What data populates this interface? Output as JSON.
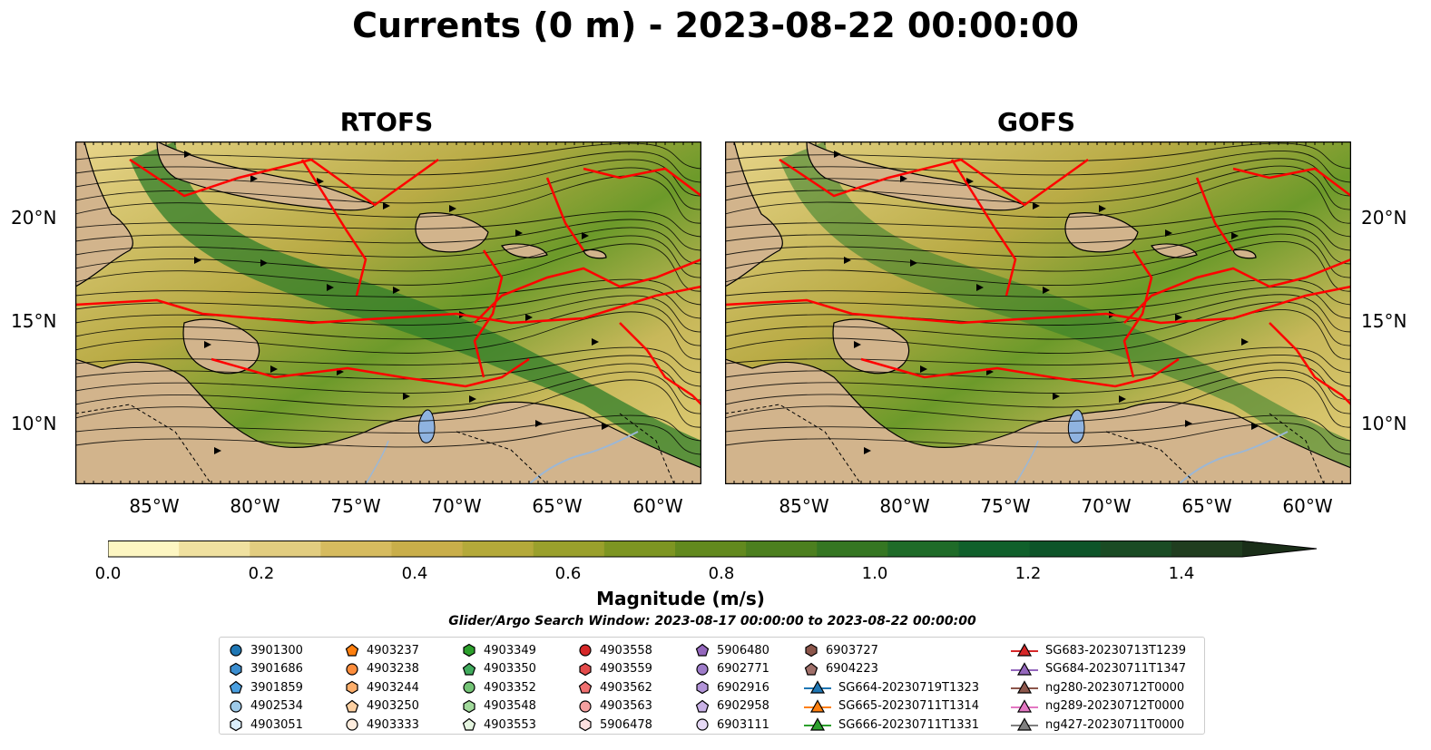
{
  "figure": {
    "title": "Currents (0 m) - 2023-08-22 00:00:00",
    "panels": [
      {
        "title": "RTOFS"
      },
      {
        "title": "GOFS"
      }
    ],
    "longitude_ticks": [
      "85°W",
      "80°W",
      "75°W",
      "70°W",
      "65°W",
      "60°W"
    ],
    "latitude_ticks": [
      "20°N",
      "15°N",
      "10°N"
    ],
    "colorbar": {
      "label": "Magnitude (m/s)",
      "ticks": [
        "0.0",
        "0.2",
        "0.4",
        "0.6",
        "0.8",
        "1.0",
        "1.2",
        "1.4"
      ],
      "colors": [
        "#fdf6c2",
        "#f0e1a0",
        "#e2cd80",
        "#d6bb5f",
        "#c9ae4a",
        "#b4a93a",
        "#9aa02c",
        "#7d9522",
        "#62891e",
        "#4c7f1f",
        "#357622",
        "#1f6b28",
        "#10602b",
        "#0d5429",
        "#1a4b24",
        "#203d1f"
      ]
    },
    "search_window": "Glider/Argo Search Window: 2023-08-17 00:00:00 to 2023-08-22 00:00:00",
    "legend": [
      [
        {
          "label": "3901300",
          "marker": "circle",
          "color": "#1f77b4"
        },
        {
          "label": "3901686",
          "marker": "hexagon",
          "color": "#3b8ed0"
        },
        {
          "label": "3901859",
          "marker": "pentagon",
          "color": "#4a9fe0"
        },
        {
          "label": "4902534",
          "marker": "circle",
          "color": "#9ecae9"
        },
        {
          "label": "4903051",
          "marker": "hexagon",
          "color": "#dbeefb"
        }
      ],
      [
        {
          "label": "4903237",
          "marker": "pentagon",
          "color": "#ff7f0e"
        },
        {
          "label": "4903238",
          "marker": "circle",
          "color": "#fd8d3c"
        },
        {
          "label": "4903244",
          "marker": "hexagon",
          "color": "#fdae6b"
        },
        {
          "label": "4903250",
          "marker": "pentagon",
          "color": "#fdd0a2"
        },
        {
          "label": "4903333",
          "marker": "circle",
          "color": "#feedde"
        }
      ],
      [
        {
          "label": "4903349",
          "marker": "hexagon",
          "color": "#2ca02c"
        },
        {
          "label": "4903350",
          "marker": "pentagon",
          "color": "#41ab5d"
        },
        {
          "label": "4903352",
          "marker": "circle",
          "color": "#74c476"
        },
        {
          "label": "4903548",
          "marker": "hexagon",
          "color": "#a1d99b"
        },
        {
          "label": "4903553",
          "marker": "pentagon",
          "color": "#e5f5e0"
        }
      ],
      [
        {
          "label": "4903558",
          "marker": "circle",
          "color": "#d62728"
        },
        {
          "label": "4903559",
          "marker": "hexagon",
          "color": "#e34a4a"
        },
        {
          "label": "4903562",
          "marker": "pentagon",
          "color": "#f07070"
        },
        {
          "label": "4903563",
          "marker": "circle",
          "color": "#f5a0a0"
        },
        {
          "label": "5906478",
          "marker": "hexagon",
          "color": "#fde0e0"
        }
      ],
      [
        {
          "label": "5906480",
          "marker": "pentagon",
          "color": "#9467bd"
        },
        {
          "label": "6902771",
          "marker": "circle",
          "color": "#9e7cc9"
        },
        {
          "label": "6902916",
          "marker": "hexagon",
          "color": "#b294d8"
        },
        {
          "label": "6902958",
          "marker": "pentagon",
          "color": "#c9b2e6"
        },
        {
          "label": "6903111",
          "marker": "circle",
          "color": "#e6d9f5"
        }
      ],
      [
        {
          "label": "6903727",
          "marker": "hexagon",
          "color": "#8c564b"
        },
        {
          "label": "6904223",
          "marker": "pentagon",
          "color": "#a0706a"
        },
        {
          "label": "SG664-20230719T1323",
          "marker": "triangle-line",
          "color": "#1f77b4"
        },
        {
          "label": "SG665-20230711T1314",
          "marker": "triangle-line",
          "color": "#ff7f0e"
        },
        {
          "label": "SG666-20230711T1331",
          "marker": "triangle-line",
          "color": "#2ca02c"
        }
      ],
      [
        {
          "label": "SG683-20230713T1239",
          "marker": "triangle-line",
          "color": "#d62728"
        },
        {
          "label": "SG684-20230711T1347",
          "marker": "triangle-line",
          "color": "#9467bd"
        },
        {
          "label": "ng280-20230712T0000",
          "marker": "triangle-line",
          "color": "#8c564b"
        },
        {
          "label": "ng289-20230712T0000",
          "marker": "triangle-line",
          "color": "#e377c2"
        },
        {
          "label": "ng427-20230711T0000",
          "marker": "triangle-line",
          "color": "#7f7f7f"
        }
      ]
    ]
  }
}
